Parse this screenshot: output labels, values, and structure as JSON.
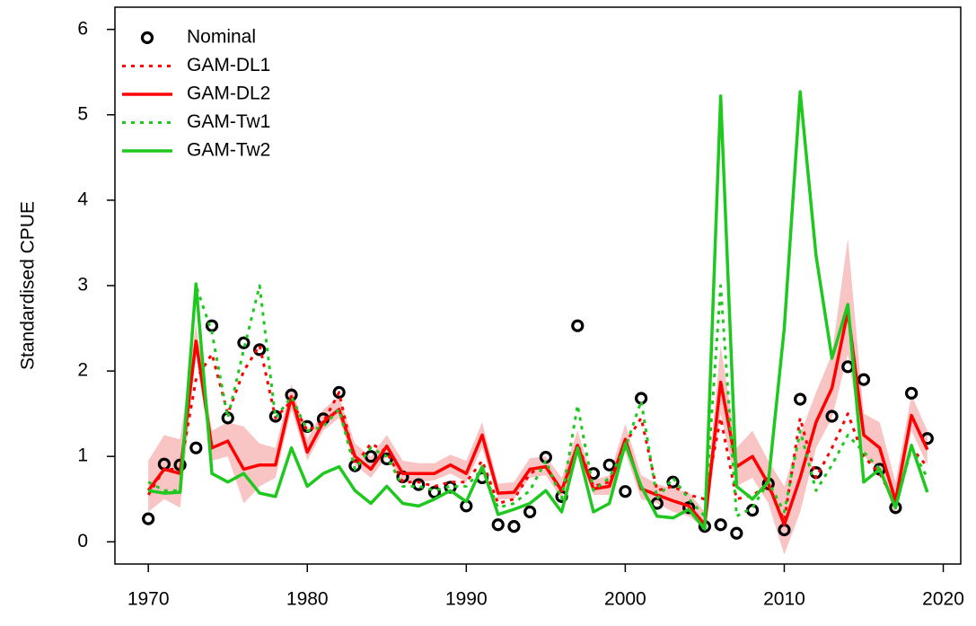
{
  "chart_data": {
    "type": "line",
    "y_label": "Standardised CPUE",
    "x": [
      1970,
      1971,
      1972,
      1973,
      1974,
      1975,
      1976,
      1977,
      1978,
      1979,
      1980,
      1981,
      1982,
      1983,
      1984,
      1985,
      1986,
      1987,
      1988,
      1989,
      1990,
      1991,
      1992,
      1993,
      1994,
      1995,
      1996,
      1997,
      1998,
      1999,
      2000,
      2001,
      2002,
      2003,
      2004,
      2005,
      2006,
      2007,
      2008,
      2009,
      2010,
      2011,
      2012,
      2013,
      2014,
      2015,
      2016,
      2017,
      2018,
      2019
    ],
    "xlim": [
      1967.9,
      2021.1
    ],
    "xticks": [
      1970,
      1980,
      1990,
      2000,
      2010,
      2020
    ],
    "ylim": [
      -0.26,
      6.26
    ],
    "yticks": [
      0,
      1,
      2,
      3,
      4,
      5,
      6
    ],
    "band": {
      "color": "#f8c4c4",
      "lower": [
        0.35,
        0.5,
        0.4,
        2.2,
        0.95,
        1.0,
        0.45,
        0.65,
        0.75,
        1.55,
        0.95,
        1.3,
        1.45,
        0.9,
        0.75,
        1.0,
        0.7,
        0.7,
        0.72,
        0.8,
        0.7,
        1.1,
        0.5,
        0.5,
        0.75,
        0.78,
        0.5,
        1.0,
        0.55,
        0.55,
        1.05,
        0.5,
        0.45,
        0.35,
        0.3,
        0.15,
        1.5,
        0.65,
        0.75,
        0.45,
        -0.15,
        0.35,
        1.1,
        1.45,
        2.2,
        1.0,
        0.85,
        0.3,
        1.3,
        0.9
      ],
      "upper": [
        0.95,
        1.25,
        1.2,
        2.55,
        1.3,
        1.4,
        1.35,
        1.15,
        1.1,
        1.85,
        1.2,
        1.55,
        1.7,
        1.15,
        1.0,
        1.25,
        0.95,
        0.92,
        0.92,
        1.02,
        0.95,
        1.4,
        0.68,
        0.7,
        0.98,
        1.0,
        0.75,
        1.3,
        0.72,
        0.78,
        1.38,
        0.78,
        0.68,
        0.62,
        0.58,
        0.35,
        2.3,
        1.1,
        1.3,
        0.95,
        0.65,
        1.25,
        1.75,
        2.2,
        3.55,
        1.5,
        1.4,
        0.7,
        1.72,
        1.3
      ]
    },
    "series": [
      {
        "name": "Nominal",
        "color": "#000000",
        "style": "points",
        "values": [
          0.27,
          0.91,
          0.9,
          1.1,
          2.53,
          1.45,
          2.33,
          2.25,
          1.47,
          1.72,
          1.35,
          1.44,
          1.75,
          0.89,
          1.0,
          0.97,
          0.76,
          0.67,
          0.58,
          0.64,
          0.42,
          0.75,
          0.2,
          0.18,
          0.35,
          0.99,
          0.53,
          2.53,
          0.8,
          0.9,
          0.59,
          1.68,
          0.45,
          0.7,
          0.4,
          0.18,
          0.2,
          0.1,
          0.37,
          0.68,
          0.14,
          1.67,
          0.81,
          1.47,
          2.05,
          1.9,
          0.85,
          0.4,
          1.74,
          1.21
        ]
      },
      {
        "name": "GAM-DL1",
        "color": "#ff0000",
        "style": "dotted",
        "values": [
          0.55,
          0.85,
          0.85,
          1.9,
          2.2,
          1.5,
          2.0,
          2.3,
          1.45,
          1.65,
          1.3,
          1.4,
          1.75,
          0.9,
          1.15,
          1.05,
          0.7,
          0.7,
          0.65,
          0.7,
          0.7,
          0.95,
          0.45,
          0.5,
          0.8,
          0.9,
          0.55,
          1.15,
          0.65,
          0.7,
          1.15,
          1.45,
          0.6,
          0.65,
          0.55,
          0.5,
          1.45,
          0.5,
          0.55,
          0.65,
          0.25,
          1.45,
          0.75,
          1.1,
          1.5,
          1.0,
          0.8,
          0.45,
          1.1,
          0.88
        ]
      },
      {
        "name": "GAM-DL2",
        "color": "#ff0000",
        "style": "solid",
        "values": [
          0.6,
          0.85,
          0.8,
          2.35,
          1.1,
          1.18,
          0.85,
          0.9,
          0.9,
          1.7,
          1.05,
          1.4,
          1.55,
          1.0,
          0.85,
          1.12,
          0.8,
          0.8,
          0.8,
          0.9,
          0.8,
          1.25,
          0.57,
          0.58,
          0.85,
          0.88,
          0.6,
          1.13,
          0.62,
          0.65,
          1.2,
          0.62,
          0.55,
          0.48,
          0.42,
          0.2,
          1.87,
          0.88,
          1.0,
          0.68,
          0.2,
          0.75,
          1.4,
          1.8,
          2.7,
          1.25,
          1.1,
          0.48,
          1.48,
          1.08
        ]
      },
      {
        "name": "GAM-Tw1",
        "color": "#1ec81e",
        "style": "dotted",
        "values": [
          0.7,
          0.6,
          0.6,
          3.0,
          2.45,
          1.45,
          2.25,
          3.0,
          1.45,
          1.7,
          1.3,
          1.35,
          1.55,
          0.85,
          1.1,
          1.0,
          0.65,
          0.65,
          0.6,
          0.65,
          0.65,
          0.85,
          0.4,
          0.45,
          0.6,
          0.95,
          0.5,
          1.6,
          0.6,
          0.75,
          1.1,
          1.65,
          0.5,
          0.75,
          0.5,
          0.3,
          3.0,
          0.3,
          0.4,
          0.7,
          0.35,
          1.3,
          0.6,
          0.9,
          1.25,
          1.05,
          0.85,
          0.4,
          1.1,
          0.75
        ]
      },
      {
        "name": "GAM-Tw2",
        "color": "#1ec81e",
        "style": "solid",
        "values": [
          0.6,
          0.57,
          0.58,
          3.02,
          0.8,
          0.7,
          0.8,
          0.57,
          0.53,
          1.1,
          0.65,
          0.8,
          0.88,
          0.6,
          0.45,
          0.65,
          0.45,
          0.42,
          0.5,
          0.6,
          0.47,
          0.88,
          0.32,
          0.38,
          0.45,
          0.6,
          0.35,
          1.1,
          0.35,
          0.45,
          1.15,
          0.65,
          0.3,
          0.28,
          0.38,
          0.15,
          5.22,
          0.65,
          0.5,
          0.7,
          2.5,
          5.27,
          3.35,
          2.15,
          2.78,
          0.7,
          0.85,
          0.4,
          1.13,
          0.58
        ]
      }
    ],
    "legend": "top-left"
  }
}
